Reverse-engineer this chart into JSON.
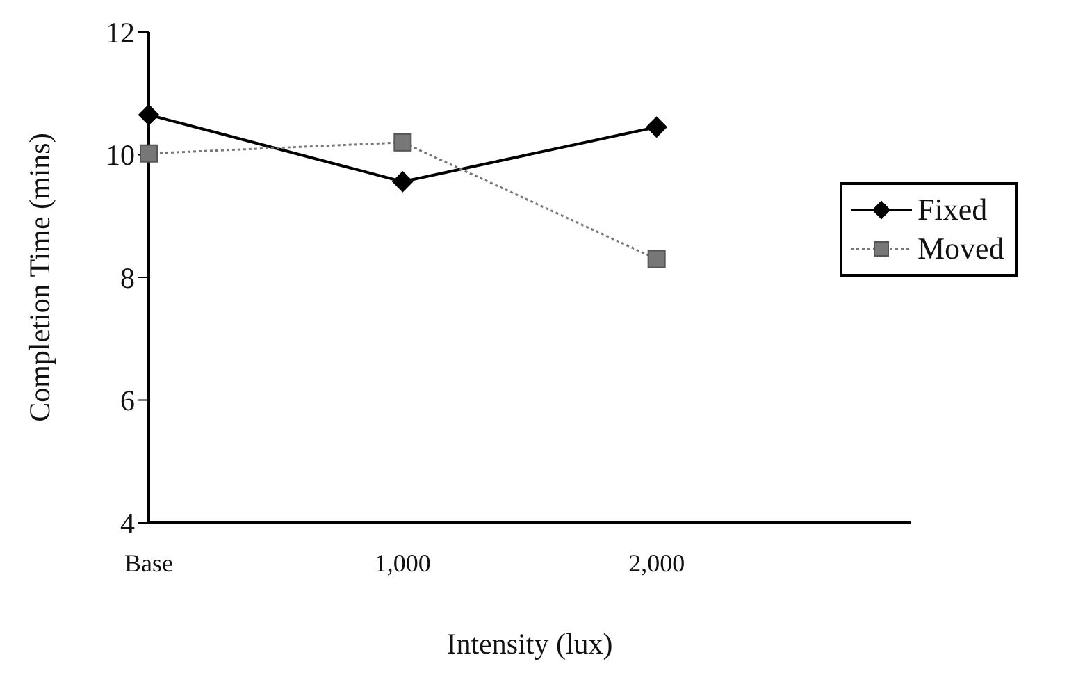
{
  "chart_data": {
    "type": "line",
    "xlabel": "Intensity (lux)",
    "ylabel": "Completion Time (mins)",
    "categories": [
      "Base",
      "1,000",
      "2,000",
      null
    ],
    "series": [
      {
        "name": "Fixed",
        "color": "#000000",
        "marker": "diamond",
        "line_style": "solid",
        "values": [
          10.65,
          9.56,
          10.45,
          null
        ]
      },
      {
        "name": "Moved",
        "color": "#777777",
        "marker": "square",
        "line_style": "dotted",
        "values": [
          10.02,
          10.2,
          8.3,
          null
        ]
      }
    ],
    "ylim": [
      4,
      12
    ],
    "yticks": [
      4,
      6,
      8,
      10,
      12
    ],
    "grid": false,
    "legend": "right"
  }
}
